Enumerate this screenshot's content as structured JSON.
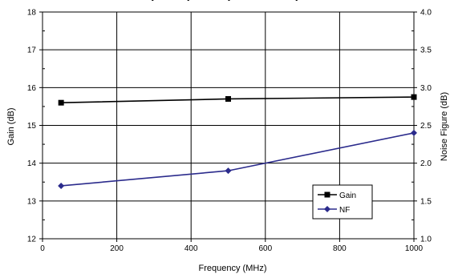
{
  "chart_data": {
    "type": "line",
    "title": "(..........) ..........) ........ .........)",
    "xlabel": "Frequency   (MHz)",
    "ylabel_left": "Gain (dB)",
    "ylabel_right": "Noise Figure (dB)",
    "xlim": [
      0,
      1000
    ],
    "x_ticks": [
      0,
      200,
      400,
      600,
      800,
      1000
    ],
    "ylim_left": [
      12,
      18
    ],
    "y_ticks_left": [
      12,
      13,
      14,
      15,
      16,
      17,
      18
    ],
    "ylim_right": [
      1.0,
      4.0
    ],
    "y_ticks_right": [
      "1.0",
      "1.5",
      "2.0",
      "2.5",
      "3.0",
      "3.5",
      "4.0"
    ],
    "grid": true,
    "legend_position": "bottom-right",
    "series": [
      {
        "name": "Gain",
        "axis": "left",
        "color": "#000000",
        "marker": "square",
        "x": [
          50,
          500,
          1000
        ],
        "y": [
          15.6,
          15.7,
          15.75
        ]
      },
      {
        "name": "NF",
        "axis": "right",
        "color": "#2b2b8c",
        "marker": "diamond",
        "x": [
          50,
          500,
          1000
        ],
        "y": [
          1.7,
          1.9,
          2.4
        ]
      }
    ]
  }
}
